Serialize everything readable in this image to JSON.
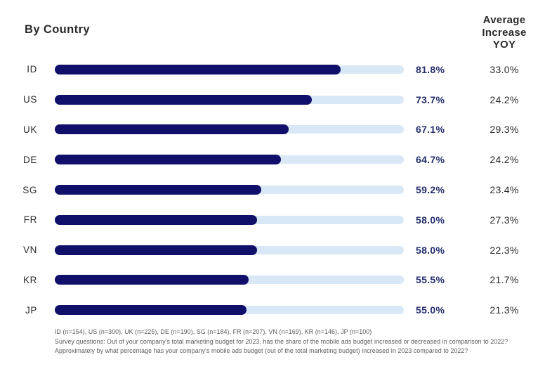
{
  "title": "By Country",
  "colors": {
    "bar_fill": "#10106b",
    "bar_track": "#d9e8f6",
    "value_text": "#252f6e",
    "heading_text": "#2b2b2e",
    "footnote_text": "#5a5a5e"
  },
  "chart_data": {
    "type": "bar",
    "title": "By Country",
    "right_column_header": "Average Increase YOY",
    "orientation": "horizontal",
    "xlim": [
      0,
      100
    ],
    "grid": false,
    "categories": [
      "ID",
      "US",
      "UK",
      "DE",
      "SG",
      "FR",
      "VN",
      "KR",
      "JP"
    ],
    "series": [
      {
        "name": "bar-values",
        "values": [
          81.8,
          73.7,
          67.1,
          64.7,
          59.2,
          58.0,
          58.0,
          55.5,
          55.0
        ],
        "labels": [
          "81.8%",
          "73.7%",
          "67.1%",
          "64.7%",
          "59.2%",
          "58.0%",
          "58.0%",
          "55.5%",
          "55.0%"
        ]
      },
      {
        "name": "average-increase-yoy",
        "values": [
          33.0,
          24.2,
          29.3,
          24.2,
          23.4,
          27.3,
          22.3,
          21.7,
          21.3
        ],
        "labels": [
          "33.0%",
          "24.2%",
          "29.3%",
          "24.2%",
          "23.4%",
          "27.3%",
          "22.3%",
          "21.7%",
          "21.3%"
        ]
      }
    ]
  },
  "footnote": {
    "lines": [
      "ID (n=154), US (n=300), UK (n=225), DE (n=190), SG (n=184), FR (n=207), VN (n=169), KR (n=146), JP (n=100)",
      "Survey questions: Out of your company's total marketing budget for 2023, has the share of the mobile ads budget increased or decreased in comparison to 2022?",
      "Approximately by what percentage has your company's mobile ads budget (out of the total marketing budget) increased in 2023 compared to 2022?"
    ]
  }
}
